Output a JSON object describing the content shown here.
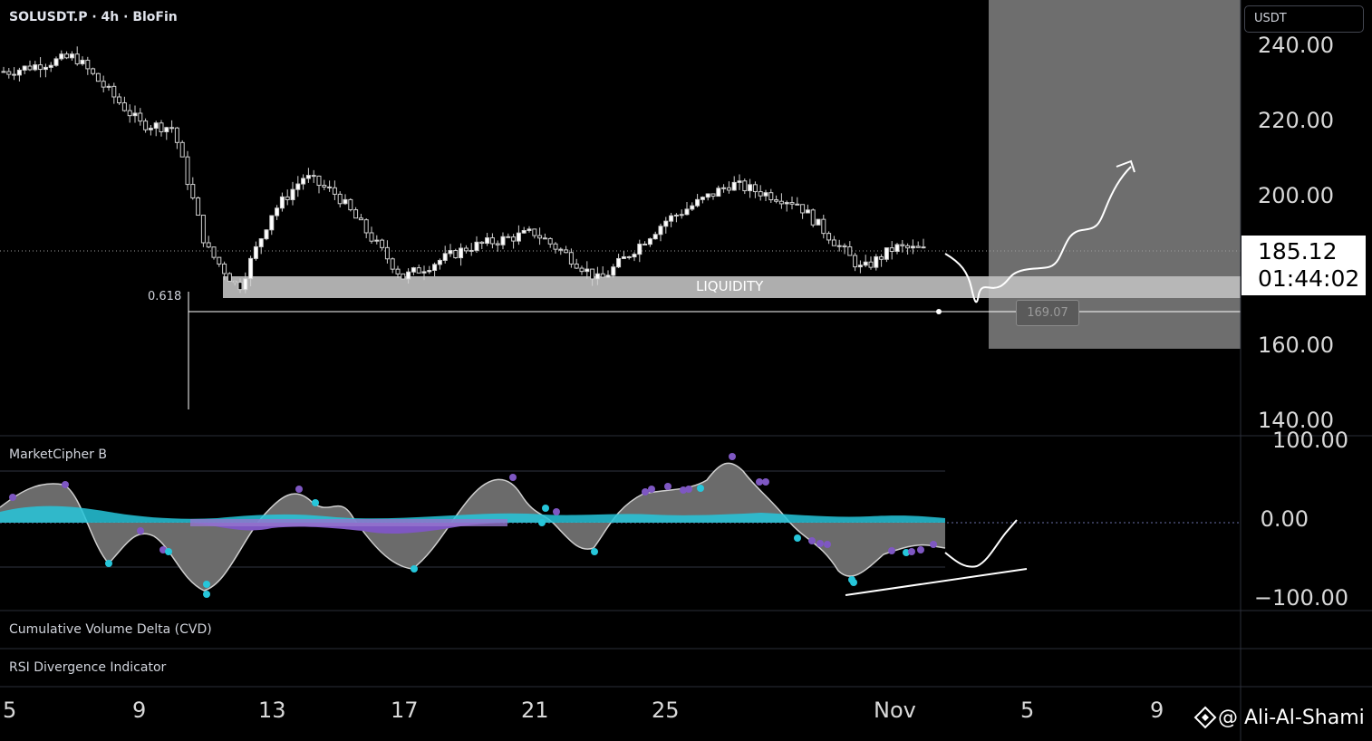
{
  "header": {
    "symbol_title": "SOLUSDT.P · 4h · BloFin",
    "currency": "USDT"
  },
  "price_axis": {
    "ticks": [
      "240.00",
      "220.00",
      "200.00",
      "160.00",
      "140.00"
    ],
    "current_price": "185.12",
    "countdown": "01:44:02"
  },
  "indicator_axis": {
    "ticks": [
      "100.00",
      "0.00",
      "−100.00"
    ]
  },
  "annotations": {
    "liquidity_label": "LIQUIDITY",
    "fib_label": "0.618",
    "target_price": "169.07"
  },
  "panels": {
    "market_cipher": "MarketCipher B",
    "cvd": "Cumulative Volume Delta (CVD)",
    "rsi_div": "RSI Divergence Indicator"
  },
  "time_axis": {
    "ticks": [
      "5",
      "9",
      "13",
      "17",
      "21",
      "25",
      "Nov",
      "5",
      "9"
    ]
  },
  "watermark": {
    "text": "@ Ali-Al-Shami"
  },
  "colors": {
    "background": "#000000",
    "liquidity_zone": "#bdbdbd",
    "projection_box": "#6e6e6e",
    "cyan": "#26c6da",
    "purple": "#7e57c2"
  },
  "chart_data": {
    "type": "candlestick",
    "symbol": "SOLUSDT.P",
    "timeframe": "4h",
    "exchange": "BloFin",
    "price_range": [
      135,
      245
    ],
    "close_path": [
      {
        "x": "Oct 5",
        "y": 233
      },
      {
        "x": "Oct 7",
        "y": 237
      },
      {
        "x": "Oct 9",
        "y": 219
      },
      {
        "x": "Oct 10",
        "y": 218
      },
      {
        "x": "Oct 11",
        "y": 186
      },
      {
        "x": "Oct 12",
        "y": 175
      },
      {
        "x": "Oct 13",
        "y": 195
      },
      {
        "x": "Oct 14",
        "y": 205
      },
      {
        "x": "Oct 15",
        "y": 200
      },
      {
        "x": "Oct 17",
        "y": 178
      },
      {
        "x": "Oct 19",
        "y": 186
      },
      {
        "x": "Oct 21",
        "y": 190
      },
      {
        "x": "Oct 22",
        "y": 184
      },
      {
        "x": "Oct 23",
        "y": 177
      },
      {
        "x": "Oct 25",
        "y": 193
      },
      {
        "x": "Oct 27",
        "y": 203
      },
      {
        "x": "Oct 29",
        "y": 198
      },
      {
        "x": "Oct 31",
        "y": 180
      },
      {
        "x": "Nov 1",
        "y": 186
      },
      {
        "x": "Nov 2",
        "y": 185.12
      }
    ],
    "current_price": 185.12,
    "liquidity_zone": [
      173,
      179
    ],
    "fib_0618_level": 169.07,
    "projection_path": [
      {
        "x": "Nov 3",
        "y": 170
      },
      {
        "x": "Nov 5",
        "y": 176
      },
      {
        "x": "Nov 7",
        "y": 190
      },
      {
        "x": "Nov 9",
        "y": 209
      }
    ],
    "indicator": {
      "name": "MarketCipher B",
      "range": [
        -100,
        100
      ],
      "zero_line": 0
    }
  }
}
